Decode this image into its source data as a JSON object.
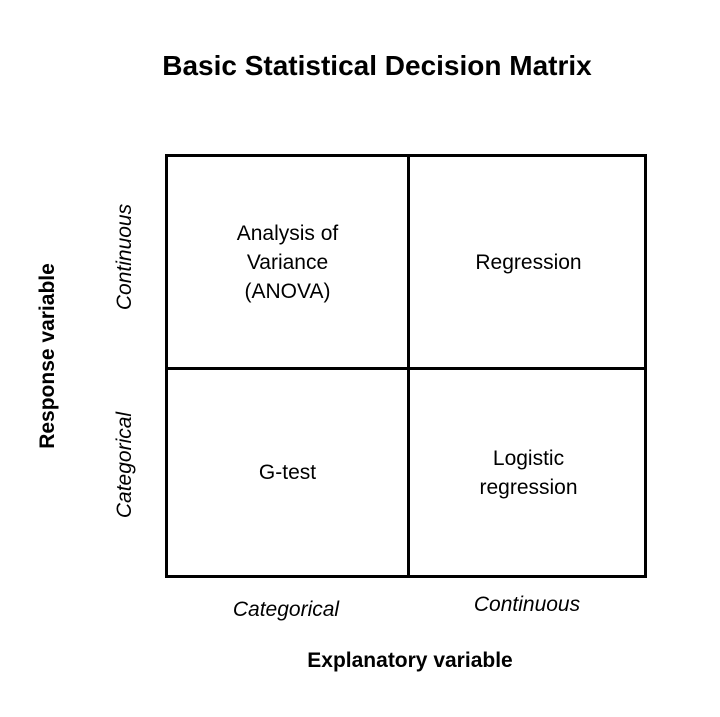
{
  "title": "Basic Statistical Decision Matrix",
  "axes": {
    "x_title": "Explanatory variable",
    "y_title": "Response variable",
    "columns": [
      "Categorical",
      "Continuous"
    ],
    "rows": [
      "Continuous",
      "Categorical"
    ]
  },
  "cells": {
    "top_left": "Analysis of\nVariance\n(ANOVA)",
    "top_right": "Regression",
    "bottom_left": "G-test",
    "bottom_right": "Logistic\nregression"
  }
}
